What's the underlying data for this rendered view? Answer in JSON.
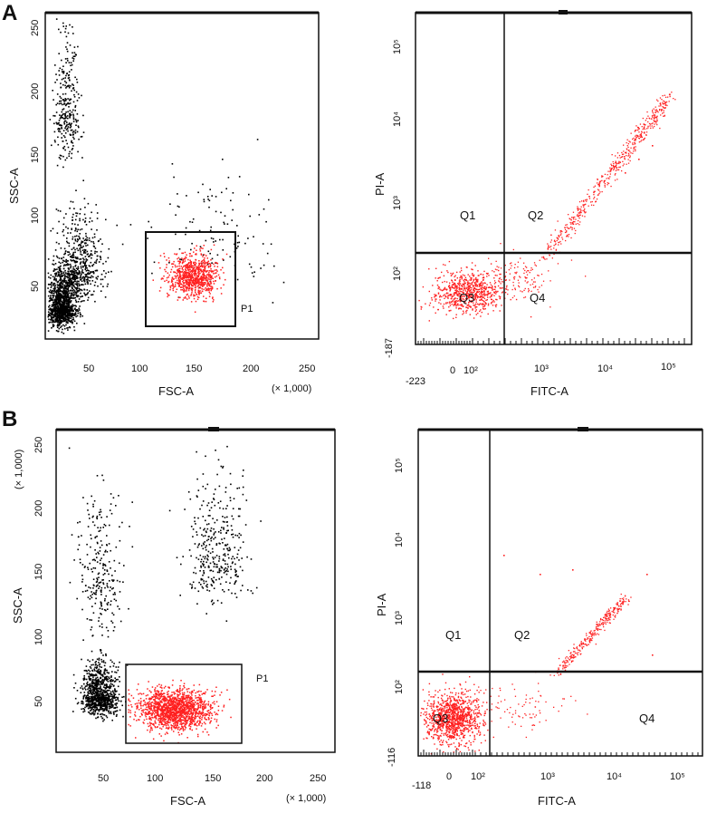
{
  "panels": [
    {
      "label": "A",
      "scatter": {
        "xlabel": "FSC-A",
        "ylabel": "SSC-A",
        "x_multiplier": "(× 1,000)",
        "y_multiplier": "",
        "x_ticks": [
          "50",
          "100",
          "150",
          "200",
          "250"
        ],
        "y_ticks": [
          "50",
          "100",
          "150",
          "200",
          "250"
        ],
        "gate_label": "P1"
      },
      "quadrant": {
        "xlabel": "FITC-A",
        "ylabel": "PI-A",
        "x_ticks": [
          "-223",
          "0",
          "10²",
          "10³",
          "10⁴",
          "10⁵"
        ],
        "y_ticks": [
          "-187",
          "10²",
          "10³",
          "10⁴",
          "10⁵"
        ],
        "quadrants": [
          "Q1",
          "Q2",
          "Q3",
          "Q4"
        ]
      }
    },
    {
      "label": "B",
      "scatter": {
        "xlabel": "FSC-A",
        "ylabel": "SSC-A",
        "x_multiplier": "(× 1,000)",
        "y_multiplier": "(× 1,000)",
        "x_ticks": [
          "50",
          "100",
          "150",
          "200",
          "250"
        ],
        "y_ticks": [
          "50",
          "100",
          "150",
          "200",
          "250"
        ],
        "gate_label": "P1"
      },
      "quadrant": {
        "xlabel": "FITC-A",
        "ylabel": "PI-A",
        "x_ticks": [
          "-118",
          "0",
          "10²",
          "10³",
          "10⁴",
          "10⁵"
        ],
        "y_ticks": [
          "-116",
          "10²",
          "10³",
          "10⁴",
          "10⁵"
        ],
        "quadrants": [
          "Q1",
          "Q2",
          "Q3",
          "Q4"
        ]
      }
    }
  ],
  "chart_data": [
    {
      "type": "scatter",
      "panel": "A",
      "xlabel": "FSC-A",
      "ylabel": "SSC-A",
      "xlim": [
        0,
        260
      ],
      "ylim": [
        0,
        260
      ],
      "gate": {
        "name": "P1",
        "x": [
          100,
          180
        ],
        "y": [
          20,
          88
        ]
      },
      "clusters": [
        {
          "color": "#000000",
          "center": [
            15,
            25
          ],
          "spread": [
            12,
            25
          ],
          "count": 1200
        },
        {
          "color": "#000000",
          "center": [
            30,
            55
          ],
          "spread": [
            20,
            40
          ],
          "count": 600
        },
        {
          "color": "#000000",
          "center": [
            20,
            180
          ],
          "spread": [
            12,
            60
          ],
          "count": 300
        },
        {
          "color": "#000000",
          "center": [
            160,
            80
          ],
          "spread": [
            70,
            60
          ],
          "count": 120
        },
        {
          "color": "#ff2020",
          "center": [
            140,
            50
          ],
          "spread": [
            22,
            15
          ],
          "count": 800
        }
      ]
    },
    {
      "type": "scatter",
      "panel": "A",
      "xlabel": "FITC-A",
      "ylabel": "PI-A",
      "scale": "biexponential",
      "quadrant_divider": {
        "x": "near 10²",
        "y": "near 10²"
      },
      "quadrants": [
        "Q1",
        "Q2",
        "Q3",
        "Q4"
      ],
      "populations": [
        {
          "name": "Q3",
          "color": "#ff2020",
          "description": "FITC- / PI- cluster",
          "count": 700
        },
        {
          "name": "Q4",
          "color": "#ff2020",
          "description": "FITC+ / PI- scatter",
          "count": 120
        },
        {
          "name": "Q2",
          "color": "#ff2020",
          "description": "diagonal streak to 10⁴ / 10⁴",
          "count": 500
        }
      ]
    },
    {
      "type": "scatter",
      "panel": "B",
      "xlabel": "FSC-A",
      "ylabel": "SSC-A",
      "xlim": [
        0,
        260
      ],
      "ylim": [
        0,
        260
      ],
      "gate": {
        "name": "P1",
        "x": [
          65,
          175
        ],
        "y": [
          0,
          75
        ]
      },
      "clusters": [
        {
          "color": "#000000",
          "center": [
            40,
            45
          ],
          "spread": [
            15,
            25
          ],
          "count": 900
        },
        {
          "color": "#000000",
          "center": [
            40,
            140
          ],
          "spread": [
            18,
            70
          ],
          "count": 250
        },
        {
          "color": "#000000",
          "center": [
            150,
            160
          ],
          "spread": [
            25,
            70
          ],
          "count": 350
        },
        {
          "color": "#ff2020",
          "center": [
            110,
            35
          ],
          "spread": [
            30,
            15
          ],
          "count": 1500
        }
      ]
    },
    {
      "type": "scatter",
      "panel": "B",
      "xlabel": "FITC-A",
      "ylabel": "PI-A",
      "scale": "biexponential",
      "quadrant_divider": {
        "x": "near 10²",
        "y": "near 10²"
      },
      "quadrants": [
        "Q1",
        "Q2",
        "Q3",
        "Q4"
      ],
      "populations": [
        {
          "name": "Q3",
          "color": "#ff2020",
          "description": "dense FITC- / PI- cluster",
          "count": 1100
        },
        {
          "name": "Q4",
          "color": "#ff2020",
          "description": "sparse FITC+ / PI- scatter",
          "count": 80
        },
        {
          "name": "Q2",
          "color": "#ff2020",
          "description": "diagonal streak to 10⁴",
          "count": 300
        }
      ]
    }
  ]
}
